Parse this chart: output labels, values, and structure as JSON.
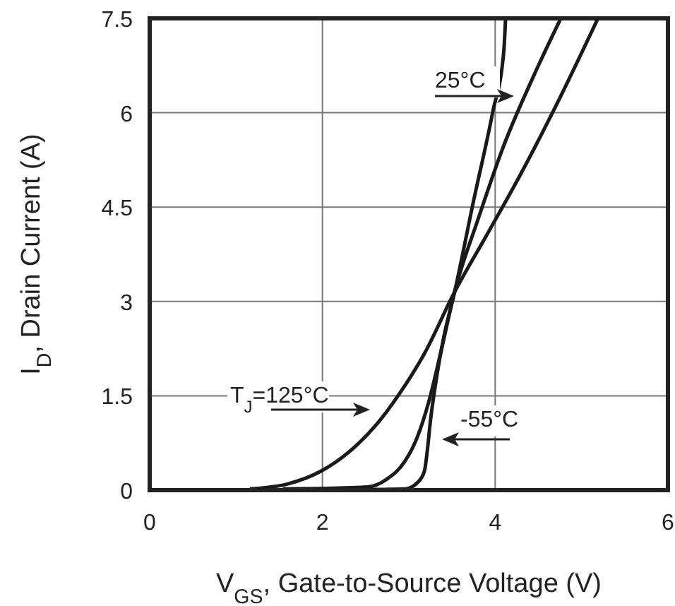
{
  "chart_data": {
    "type": "line",
    "xlabel": "V$_{GS}$, Gate-to-Source Voltage (V)",
    "ylabel": "I$_{D}$, Drain Current (A)",
    "xlim": [
      0,
      6
    ],
    "ylim": [
      0,
      7.5
    ],
    "xticks": [
      0,
      2,
      4,
      6
    ],
    "yticks": [
      0,
      1.5,
      3,
      4.5,
      6,
      7.5
    ],
    "grid": true,
    "legend": "top left",
    "line_style": "solid",
    "series": [
      {
        "name": "T$_{J}$=125°C",
        "color": "#1a1a1a",
        "x": [
          1.16,
          1.6,
          1.98,
          2.3,
          2.63,
          2.9,
          3.18,
          3.53,
          3.9,
          4.27,
          4.7,
          5.19
        ],
        "values": [
          0.02,
          0.1,
          0.3,
          0.6,
          1.05,
          1.55,
          2.17,
          3.15,
          4.05,
          4.96,
          6.1,
          7.5
        ]
      },
      {
        "name": "25°C",
        "color": "#1a1a1a",
        "x": [
          1.54,
          2.1,
          2.52,
          2.75,
          2.95,
          3.1,
          3.23,
          3.38,
          3.53,
          3.8,
          4.1,
          4.45,
          4.76
        ],
        "values": [
          0.02,
          0.03,
          0.05,
          0.18,
          0.45,
          0.85,
          1.4,
          2.25,
          3.15,
          4.3,
          5.48,
          6.6,
          7.5
        ]
      },
      {
        "name": "-55°C",
        "color": "#1a1a1a",
        "x": [
          2.19,
          2.6,
          2.96,
          3.1,
          3.18,
          3.22,
          3.25,
          3.3,
          3.4,
          3.53,
          3.75,
          3.97,
          4.1,
          4.12
        ],
        "values": [
          0.0,
          0.01,
          0.02,
          0.12,
          0.3,
          0.7,
          1.1,
          1.6,
          2.4,
          3.15,
          4.6,
          6.0,
          6.98,
          7.5
        ]
      }
    ]
  }
}
